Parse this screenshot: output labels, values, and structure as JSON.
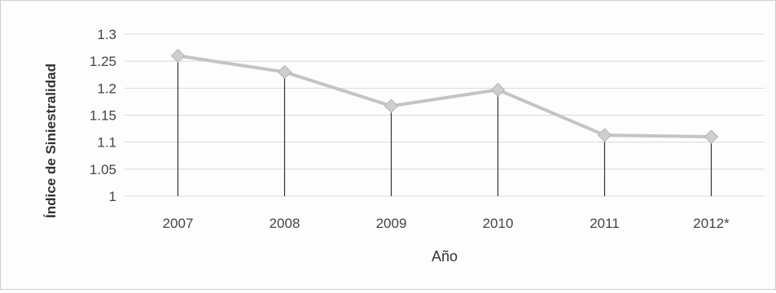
{
  "chart_data": {
    "type": "line",
    "title": "",
    "xlabel": "Año",
    "ylabel": "Índice de Siniestralidad",
    "categories": [
      "2007",
      "2008",
      "2009",
      "2010",
      "2011",
      "2012*"
    ],
    "series": [
      {
        "values": [
          1.26,
          1.23,
          1.167,
          1.197,
          1.113,
          1.11
        ]
      }
    ],
    "ylim": [
      1,
      1.3
    ],
    "yticks": [
      "1",
      "1.05",
      "1.1",
      "1.15",
      "1.2",
      "1.25",
      "1.3"
    ],
    "grid": true,
    "drop_lines": true,
    "colors": {
      "line": "#c4c4c4",
      "marker": "#cfcfcf",
      "gridline": "#d9d9d9",
      "drop_line": "#333333"
    }
  }
}
